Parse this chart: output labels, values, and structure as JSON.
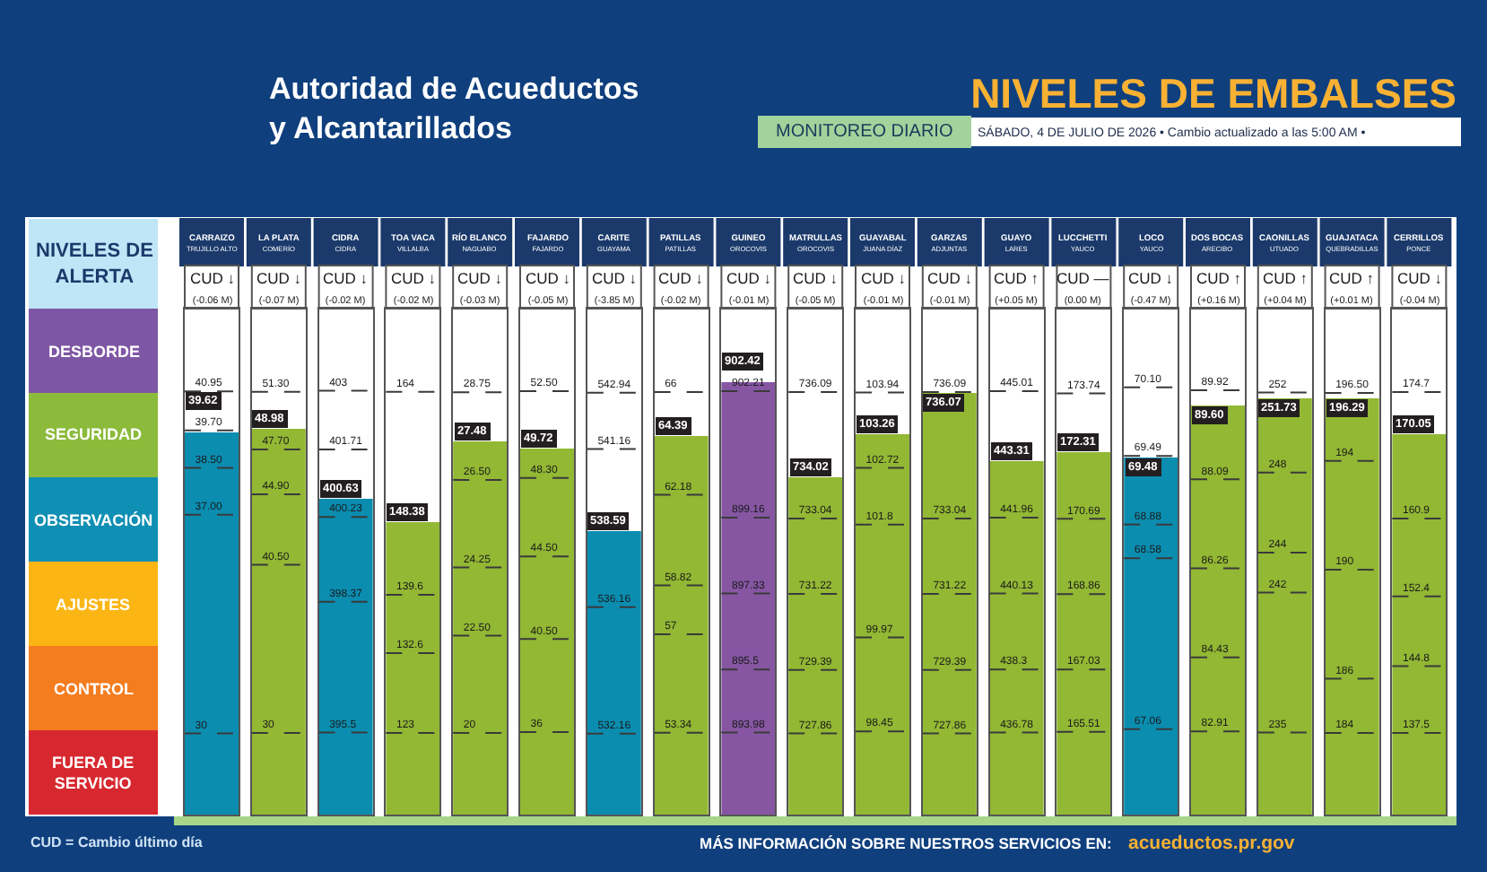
{
  "chart_data": [
    {
      "type": "other",
      "title": "NIVELES DE EMBALSES",
      "annotations": [
        "Autoridad de Acueductos\ny Alcantarillados",
        "MONITOREO DIARIO",
        "SÁBADO, 4 DE JULIO DE 2026 • Cambio actualizado a las 5:00 AM •",
        "NIVELES DE\nALERTA",
        "DESBORDE",
        "SEGURIDAD",
        "OBSERVACIÓN",
        "AJUSTES",
        "CONTROL",
        "FUERA DE\nSERVICIO",
        "CUD = Cambio último día",
        "MÁS INFORMACIÓN SOBRE NUESTROS SERVICIOS EN:",
        "acueductos.pr.gov"
      ]
    },
    {
      "type": "bar",
      "categories": [
        "CARRAIZO\nTRUJILLO ALTO"
      ],
      "values": [
        39.62
      ],
      "color": "#0b8db0",
      "value_labels": [
        "39.62"
      ],
      "ylim": [
        27.4,
        43.6
      ],
      "yticks": [
        30,
        {
          "value": 37,
          "label": "37.00"
        },
        {
          "value": 38.5,
          "label": "38.50"
        },
        {
          "value": 39.7,
          "label": "39.70"
        },
        40.95
      ],
      "grid": "y",
      "annotations": [
        "CUD ↓\n(-0.06 M)"
      ]
    },
    {
      "type": "bar",
      "categories": [
        "LA PLATA\nCOMERÍO"
      ],
      "values": [
        48.98
      ],
      "color": "#92b834",
      "value_labels": [
        "48.98"
      ],
      "ylim": [
        24.9,
        56.5
      ],
      "yticks": [
        30,
        {
          "value": 40.5,
          "label": "40.50"
        },
        {
          "value": 44.9,
          "label": "44.90"
        },
        {
          "value": 47.7,
          "label": "47.70"
        },
        {
          "value": 51.3,
          "label": "51.30"
        }
      ],
      "grid": "y",
      "annotations": [
        "CUD ↓\n(-0.07 M)"
      ]
    },
    {
      "type": "bar",
      "categories": [
        "CIDRA\nCIDRA"
      ],
      "values": [
        400.63
      ],
      "color": "#0b8db0",
      "value_labels": [
        "400.63"
      ],
      "ylim": [
        393.7,
        404.8
      ],
      "yticks": [
        395.5,
        398.37,
        400.23,
        401.71,
        403
      ],
      "grid": "y",
      "annotations": [
        "CUD ↓\n(-0.02 M)"
      ]
    },
    {
      "type": "bar",
      "categories": [
        "TOA VACA\nVILLALBA"
      ],
      "values": [
        148.38
      ],
      "color": "#92b834",
      "value_labels": [
        "148.38"
      ],
      "ylim": [
        113.2,
        174
      ],
      "yticks": [
        123,
        132.6,
        139.6,
        164
      ],
      "grid": "y",
      "annotations": [
        "CUD ↓\n(-0.02 M)"
      ]
    },
    {
      "type": "bar",
      "categories": [
        "RÍO BLANCO\nNAGUABO"
      ],
      "values": [
        27.48
      ],
      "color": "#92b834",
      "value_labels": [
        "27.48"
      ],
      "ylim": [
        17.9,
        30.9
      ],
      "yticks": [
        20,
        {
          "value": 22.5,
          "label": "22.50"
        },
        24.25,
        {
          "value": 26.5,
          "label": "26.50"
        },
        28.75
      ],
      "grid": "y",
      "annotations": [
        "CUD ↓\n(-0.03 M)"
      ]
    },
    {
      "type": "bar",
      "categories": [
        "FAJARDO\nFAJARDO"
      ],
      "values": [
        49.72
      ],
      "color": "#92b834",
      "value_labels": [
        "49.72"
      ],
      "ylim": [
        32,
        56.5
      ],
      "yticks": [
        36,
        {
          "value": 40.5,
          "label": "40.50"
        },
        {
          "value": 44.5,
          "label": "44.50"
        },
        {
          "value": 48.3,
          "label": "48.30"
        },
        {
          "value": 52.5,
          "label": "52.50"
        }
      ],
      "grid": "y",
      "annotations": [
        "CUD ↓\n(-0.05 M)"
      ]
    },
    {
      "type": "bar",
      "categories": [
        "CARITE\nGUAYAMA"
      ],
      "values": [
        538.59
      ],
      "color": "#0b8db0",
      "value_labels": [
        "538.59"
      ],
      "ylim": [
        529.6,
        545.6
      ],
      "yticks": [
        532.16,
        536.16,
        541.16,
        542.94
      ],
      "grid": "y",
      "annotations": [
        "CUD ↓\n(-3.85 M)"
      ]
    },
    {
      "type": "bar",
      "categories": [
        "PATILLAS\nPATILLAS"
      ],
      "values": [
        64.39
      ],
      "color": "#92b834",
      "value_labels": [
        "64.39"
      ],
      "ylim": [
        50.3,
        69.1
      ],
      "yticks": [
        53.34,
        57,
        58.82,
        62.18,
        66
      ],
      "grid": "y",
      "annotations": [
        "CUD ↓\n(-0.02 M)"
      ]
    },
    {
      "type": "bar",
      "categories": [
        "GUINEO\nOROCOVIS"
      ],
      "values": [
        902.42
      ],
      "color": "#8656a3",
      "value_labels": [
        "902.42"
      ],
      "ylim": [
        892,
        904.2
      ],
      "yticks": [
        893.98,
        895.5,
        897.33,
        899.16,
        902.21
      ],
      "grid": "y",
      "annotations": [
        "CUD ↓\n(-0.01 M)"
      ]
    },
    {
      "type": "bar",
      "categories": [
        "MATRULLAS\nOROCOVIS"
      ],
      "values": [
        734.02
      ],
      "color": "#92b834",
      "value_labels": [
        "734.02"
      ],
      "ylim": [
        725.9,
        738.1
      ],
      "yticks": [
        727.86,
        729.39,
        731.22,
        733.04,
        736.09
      ],
      "grid": "y",
      "annotations": [
        "CUD ↓\n(-0.05 M)"
      ]
    },
    {
      "type": "bar",
      "categories": [
        "GUAYABAL\nJUANA DÍAZ"
      ],
      "values": [
        103.26
      ],
      "color": "#92b834",
      "value_labels": [
        "103.26"
      ],
      "ylim": [
        97.1,
        105.3
      ],
      "yticks": [
        98.45,
        99.97,
        101.8,
        102.72,
        103.94
      ],
      "grid": "y",
      "annotations": [
        "CUD ↓\n(-0.01 M)"
      ]
    },
    {
      "type": "bar",
      "categories": [
        "GARZAS\nADJUNTAS"
      ],
      "values": [
        736.07
      ],
      "color": "#92b834",
      "value_labels": [
        "736.07"
      ],
      "ylim": [
        725.9,
        738.1
      ],
      "yticks": [
        727.86,
        729.39,
        731.22,
        733.04,
        736.09
      ],
      "grid": "y",
      "annotations": [
        "CUD ↓\n(-0.01 M)"
      ]
    },
    {
      "type": "bar",
      "categories": [
        "GUAYO\nLARES"
      ],
      "values": [
        443.31
      ],
      "color": "#92b834",
      "value_labels": [
        "443.31"
      ],
      "ylim": [
        434.8,
        447
      ],
      "yticks": [
        436.78,
        438.3,
        440.13,
        441.96,
        445.01
      ],
      "grid": "y",
      "annotations": [
        "CUD ↑\n(+0.05 M)"
      ]
    },
    {
      "type": "bar",
      "categories": [
        "LUCCHETTI\nYAUCO"
      ],
      "values": [
        172.31
      ],
      "color": "#92b834",
      "value_labels": [
        "172.31"
      ],
      "ylim": [
        163.5,
        175.8
      ],
      "yticks": [
        165.51,
        167.03,
        168.86,
        170.69,
        173.74
      ],
      "grid": "y",
      "annotations": [
        "CUD —\n(0.00 M)"
      ]
    },
    {
      "type": "bar",
      "categories": [
        "LOCO\nYAUCO"
      ],
      "values": [
        69.48
      ],
      "color": "#0b8db0",
      "value_labels": [
        "69.48"
      ],
      "ylim": [
        66.3,
        70.8
      ],
      "yticks": [
        67.06,
        68.58,
        68.88,
        69.49,
        {
          "value": 70.1,
          "label": "70.10"
        }
      ],
      "grid": "y",
      "annotations": [
        "CUD ↓\n(-0.47 M)"
      ]
    },
    {
      "type": "bar",
      "categories": [
        "DOS BOCAS\nARECIBO"
      ],
      "values": [
        89.6
      ],
      "color": "#92b834",
      "value_labels": [
        "89.60"
      ],
      "ylim": [
        81.2,
        91.6
      ],
      "yticks": [
        82.91,
        84.43,
        86.26,
        88.09,
        89.92
      ],
      "grid": "y",
      "annotations": [
        "CUD ↑\n(+0.16 M)"
      ]
    },
    {
      "type": "bar",
      "categories": [
        "CAONILLAS\nUTUADO"
      ],
      "values": [
        251.73
      ],
      "color": "#92b834",
      "value_labels": [
        "251.73"
      ],
      "ylim": [
        230.9,
        256.2
      ],
      "yticks": [
        235,
        242,
        244,
        248,
        252
      ],
      "grid": "y",
      "annotations": [
        "CUD ↑\n(+0.04 M)"
      ]
    },
    {
      "type": "bar",
      "categories": [
        "GUAJATACA\nQUEBRADILLAS"
      ],
      "values": [
        196.29
      ],
      "color": "#92b834",
      "value_labels": [
        "196.29"
      ],
      "ylim": [
        181,
        199.6
      ],
      "yticks": [
        184,
        186,
        190,
        194,
        {
          "value": 196.5,
          "label": "196.50"
        }
      ],
      "grid": "y",
      "annotations": [
        "CUD ↑\n(+0.01 M)"
      ]
    },
    {
      "type": "bar",
      "categories": [
        "CERRILLOS\nPONCE"
      ],
      "values": [
        170.05
      ],
      "color": "#92b834",
      "value_labels": [
        "170.05"
      ],
      "ylim": [
        128.6,
        183.8
      ],
      "yticks": [
        137.5,
        144.8,
        152.4,
        160.9,
        174.7
      ],
      "grid": "y",
      "annotations": [
        "CUD ↓\n(-0.04 M)"
      ]
    }
  ]
}
